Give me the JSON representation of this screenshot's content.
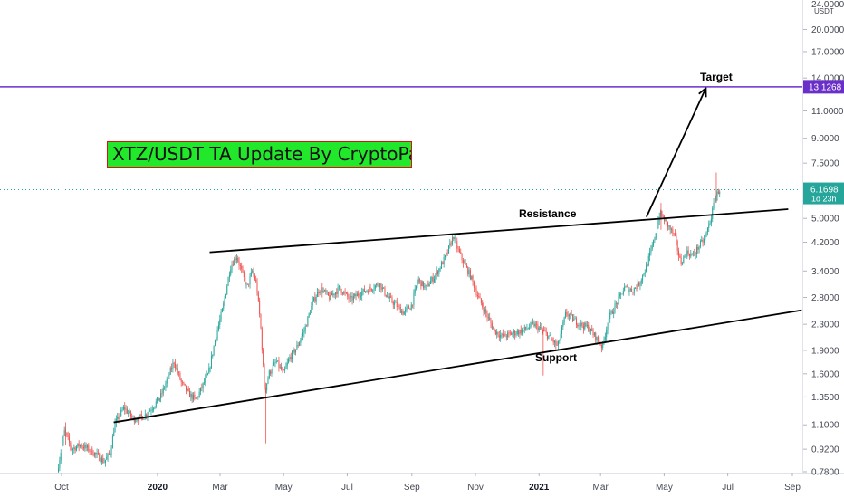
{
  "chart_data": {
    "type": "candlestick",
    "pair": "XTZ/USDT",
    "title": "XTZ/USDT TA Update By CryptoPatel",
    "currency_label": "USDT",
    "scale": "log",
    "grid": false,
    "y_ticks": [
      "24.0000",
      "20.0000",
      "17.0000",
      "14.0000",
      "11.0000",
      "9.0000",
      "7.5000",
      "5.0000",
      "4.2000",
      "3.4000",
      "2.8000",
      "2.3000",
      "1.9000",
      "1.6000",
      "1.3500",
      "1.1000",
      "0.9200",
      "0.7800"
    ],
    "y_tick_values": [
      24,
      20,
      17,
      14,
      11,
      9,
      7.5,
      5,
      4.2,
      3.4,
      2.8,
      2.3,
      1.9,
      1.6,
      1.35,
      1.1,
      0.92,
      0.78
    ],
    "x_ticks": [
      "Oct",
      "2020",
      "Mar",
      "May",
      "Jul",
      "Sep",
      "Nov",
      "2021",
      "Mar",
      "May",
      "Jul",
      "Sep"
    ],
    "x_tick_dates": [
      "2019-10-01",
      "2020-01-01",
      "2020-03-01",
      "2020-05-01",
      "2020-07-01",
      "2020-09-01",
      "2020-11-01",
      "2021-01-01",
      "2021-03-01",
      "2021-05-01",
      "2021-07-01",
      "2021-09-01"
    ],
    "bold_x_ticks": [
      "2020",
      "2021"
    ],
    "target_level": {
      "value": 13.1268,
      "label": "13.1268",
      "color": "#6a2fc9"
    },
    "last_price": {
      "value": 6.1698,
      "label": "6.1698",
      "countdown": "1d 23h",
      "color": "#26a69a"
    },
    "resistance_line": {
      "label": "Resistance",
      "from": {
        "date": "2020-02-20",
        "value": 3.9
      },
      "to": {
        "date": "2021-08-28",
        "value": 5.35
      }
    },
    "support_line": {
      "label": "Support",
      "from": {
        "date": "2019-11-20",
        "value": 1.12
      },
      "to": {
        "date": "2021-09-10",
        "value": 2.55
      }
    },
    "target_arrow": {
      "label": "Target",
      "from": {
        "date": "2021-04-14",
        "value": 5.05
      },
      "to": {
        "date": "2021-06-10",
        "value": 13.0
      }
    },
    "up_color": "#26a69a",
    "down_color": "#ef5350",
    "price_path": [
      [
        "2019-09-28",
        0.78
      ],
      [
        "2019-10-05",
        1.05
      ],
      [
        "2019-10-12",
        0.92
      ],
      [
        "2019-10-20",
        0.95
      ],
      [
        "2019-10-28",
        0.92
      ],
      [
        "2019-11-05",
        0.88
      ],
      [
        "2019-11-12",
        0.84
      ],
      [
        "2019-11-18",
        0.9
      ],
      [
        "2019-11-22",
        1.1
      ],
      [
        "2019-12-01",
        1.25
      ],
      [
        "2019-12-10",
        1.15
      ],
      [
        "2019-12-20",
        1.17
      ],
      [
        "2019-12-28",
        1.25
      ],
      [
        "2020-01-05",
        1.35
      ],
      [
        "2020-01-12",
        1.55
      ],
      [
        "2020-01-18",
        1.75
      ],
      [
        "2020-01-25",
        1.5
      ],
      [
        "2020-02-01",
        1.38
      ],
      [
        "2020-02-08",
        1.32
      ],
      [
        "2020-02-15",
        1.48
      ],
      [
        "2020-02-20",
        1.6
      ],
      [
        "2020-02-27",
        2.1
      ],
      [
        "2020-03-05",
        2.6
      ],
      [
        "2020-03-12",
        3.5
      ],
      [
        "2020-03-18",
        3.8
      ],
      [
        "2020-03-24",
        3.3
      ],
      [
        "2020-03-28",
        3.0
      ],
      [
        "2020-04-02",
        3.4
      ],
      [
        "2020-04-06",
        3.1
      ],
      [
        "2020-04-10",
        2.3
      ],
      [
        "2020-04-14",
        1.4
      ],
      [
        "2020-04-18",
        1.6
      ],
      [
        "2020-04-25",
        1.75
      ],
      [
        "2020-05-02",
        1.6
      ],
      [
        "2020-05-08",
        1.8
      ],
      [
        "2020-05-15",
        1.95
      ],
      [
        "2020-05-22",
        2.2
      ],
      [
        "2020-05-30",
        2.7
      ],
      [
        "2020-06-06",
        3.0
      ],
      [
        "2020-06-15",
        2.8
      ],
      [
        "2020-06-25",
        3.0
      ],
      [
        "2020-07-05",
        2.75
      ],
      [
        "2020-07-15",
        2.9
      ],
      [
        "2020-07-25",
        3.0
      ],
      [
        "2020-08-02",
        3.1
      ],
      [
        "2020-08-10",
        2.8
      ],
      [
        "2020-08-18",
        2.65
      ],
      [
        "2020-08-25",
        2.5
      ],
      [
        "2020-09-02",
        2.65
      ],
      [
        "2020-09-08",
        3.2
      ],
      [
        "2020-09-15",
        3.0
      ],
      [
        "2020-09-25",
        3.3
      ],
      [
        "2020-10-05",
        3.8
      ],
      [
        "2020-10-12",
        4.4
      ],
      [
        "2020-10-16",
        4.0
      ],
      [
        "2020-10-22",
        3.6
      ],
      [
        "2020-10-28",
        3.3
      ],
      [
        "2020-11-05",
        2.8
      ],
      [
        "2020-11-12",
        2.5
      ],
      [
        "2020-11-20",
        2.2
      ],
      [
        "2020-11-28",
        2.1
      ],
      [
        "2020-12-08",
        2.15
      ],
      [
        "2020-12-18",
        2.2
      ],
      [
        "2020-12-28",
        2.3
      ],
      [
        "2021-01-05",
        2.2
      ],
      [
        "2021-01-12",
        2.1
      ],
      [
        "2021-01-20",
        1.95
      ],
      [
        "2021-01-28",
        2.5
      ],
      [
        "2021-02-03",
        2.4
      ],
      [
        "2021-02-10",
        2.3
      ],
      [
        "2021-02-18",
        2.25
      ],
      [
        "2021-02-25",
        2.1
      ],
      [
        "2021-03-04",
        1.95
      ],
      [
        "2021-03-10",
        2.4
      ],
      [
        "2021-03-18",
        2.7
      ],
      [
        "2021-03-25",
        3.0
      ],
      [
        "2021-04-02",
        2.95
      ],
      [
        "2021-04-08",
        3.1
      ],
      [
        "2021-04-15",
        3.5
      ],
      [
        "2021-04-22",
        4.2
      ],
      [
        "2021-04-28",
        5.2
      ],
      [
        "2021-05-05",
        4.8
      ],
      [
        "2021-05-12",
        4.4
      ],
      [
        "2021-05-18",
        3.6
      ],
      [
        "2021-05-24",
        3.9
      ],
      [
        "2021-05-30",
        3.8
      ],
      [
        "2021-06-05",
        4.1
      ],
      [
        "2021-06-10",
        4.3
      ],
      [
        "2021-06-16",
        5.0
      ],
      [
        "2021-06-20",
        5.8
      ],
      [
        "2021-06-24",
        6.1698
      ]
    ]
  },
  "annotations": {
    "resistance": "Resistance",
    "support": "Support",
    "target": "Target"
  }
}
